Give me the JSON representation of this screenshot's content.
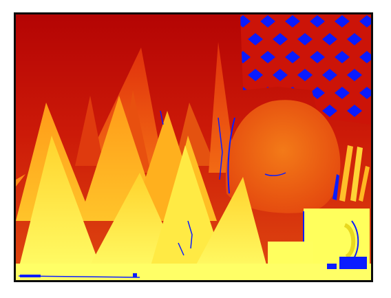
{
  "image": {
    "kind": "disparity-map",
    "palette": {
      "far": "#b00000",
      "far_mid": "#d62a10",
      "mid": "#f06a12",
      "near_mid": "#ffa21a",
      "near": "#ffe23a",
      "nearest": "#ffff66",
      "occlusion": "#0a1cff",
      "frame": "#0b0b0b",
      "background": "#ffffff"
    },
    "objects": [
      "cones",
      "mask",
      "lattice",
      "cup",
      "pencils"
    ]
  }
}
